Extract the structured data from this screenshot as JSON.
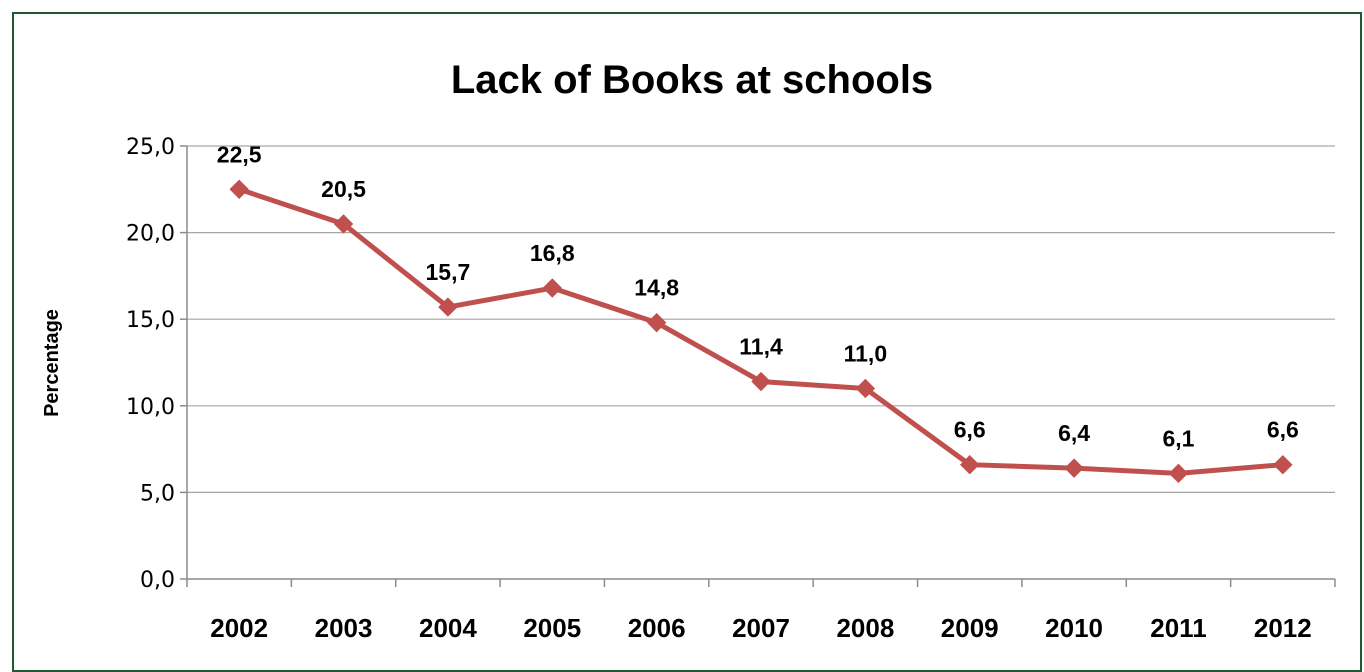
{
  "chart_data": {
    "type": "line",
    "title": "Lack of Books at schools",
    "ylabel": "Percentage",
    "xlabel": "",
    "categories": [
      "2002",
      "2003",
      "2004",
      "2005",
      "2006",
      "2007",
      "2008",
      "2009",
      "2010",
      "2011",
      "2012"
    ],
    "values": [
      22.5,
      20.5,
      15.7,
      16.8,
      14.8,
      11.4,
      11.0,
      6.6,
      6.4,
      6.1,
      6.6
    ],
    "data_labels": [
      "22,5",
      "20,5",
      "15,7",
      "16,8",
      "14,8",
      "11,4",
      "11,0",
      "6,6",
      "6,4",
      "6,1",
      "6,6"
    ],
    "y_ticks": [
      "0,0",
      "5,0",
      "10,0",
      "15,0",
      "20,0",
      "25,0"
    ],
    "ylim": [
      0,
      25
    ],
    "grid": true,
    "legend": "none",
    "line_color": "#c0504d",
    "marker": "diamond"
  }
}
